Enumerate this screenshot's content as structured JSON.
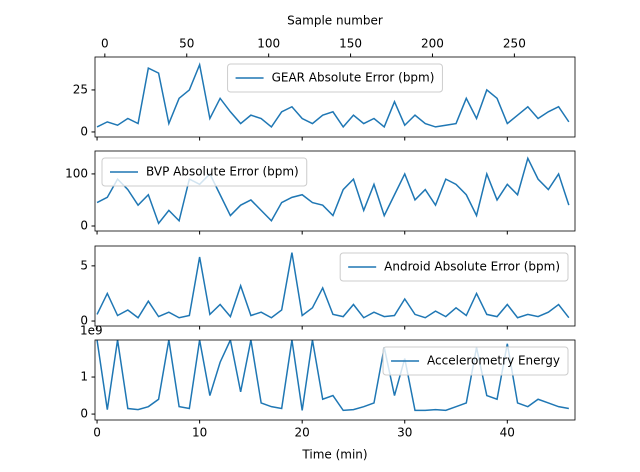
{
  "chart_data": [
    {
      "type": "line",
      "x2label": "Sample number",
      "x2lim": [
        -6,
        287
      ],
      "x2ticks": [
        0,
        50,
        100,
        150,
        200,
        250
      ],
      "xlim": [
        -0.2,
        46.6
      ],
      "ylim": [
        -3,
        44.6
      ],
      "yticks": [
        0,
        25
      ],
      "legend": "upper center",
      "x": [
        0,
        1,
        2,
        3,
        4,
        5,
        6,
        7,
        8,
        9,
        10,
        11,
        12,
        13,
        14,
        15,
        16,
        17,
        18,
        19,
        20,
        21,
        22,
        23,
        24,
        25,
        26,
        27,
        28,
        29,
        30,
        31,
        32,
        33,
        34,
        35,
        36,
        37,
        38,
        39,
        40,
        41,
        42,
        43,
        44,
        45,
        46
      ],
      "series": [
        {
          "name": "GEAR Absolute Error (bpm)",
          "color": "#1f77b4",
          "values": [
            3,
            6,
            4,
            8,
            5,
            38,
            35,
            5,
            20,
            25,
            40,
            8,
            20,
            12,
            5,
            10,
            8,
            3,
            12,
            15,
            8,
            5,
            10,
            12,
            3,
            10,
            5,
            8,
            3,
            18,
            4,
            10,
            5,
            3,
            4,
            5,
            20,
            8,
            25,
            20,
            5,
            10,
            15,
            8,
            12,
            15,
            6
          ]
        }
      ]
    },
    {
      "type": "line",
      "xlim": [
        -0.2,
        46.6
      ],
      "ylim": [
        -9.6,
        144
      ],
      "yticks": [
        0,
        100
      ],
      "legend": "upper left",
      "x": [
        0,
        1,
        2,
        3,
        4,
        5,
        6,
        7,
        8,
        9,
        10,
        11,
        12,
        13,
        14,
        15,
        16,
        17,
        18,
        19,
        20,
        21,
        22,
        23,
        24,
        25,
        26,
        27,
        28,
        29,
        30,
        31,
        32,
        33,
        34,
        35,
        36,
        37,
        38,
        39,
        40,
        41,
        42,
        43,
        44,
        45,
        46
      ],
      "series": [
        {
          "name": "BVP Absolute Error (bpm)",
          "color": "#1f77b4",
          "values": [
            45,
            55,
            90,
            70,
            40,
            60,
            5,
            30,
            10,
            90,
            80,
            100,
            60,
            20,
            40,
            50,
            30,
            10,
            45,
            55,
            60,
            45,
            40,
            20,
            70,
            90,
            30,
            80,
            20,
            60,
            100,
            50,
            70,
            40,
            90,
            80,
            60,
            20,
            100,
            50,
            80,
            60,
            130,
            90,
            70,
            100,
            40
          ]
        }
      ]
    },
    {
      "type": "line",
      "xlim": [
        -0.2,
        46.6
      ],
      "ylim": [
        -0.45,
        6.8
      ],
      "yticks": [
        0,
        5
      ],
      "legend": "upper right",
      "x": [
        0,
        1,
        2,
        3,
        4,
        5,
        6,
        7,
        8,
        9,
        10,
        11,
        12,
        13,
        14,
        15,
        16,
        17,
        18,
        19,
        20,
        21,
        22,
        23,
        24,
        25,
        26,
        27,
        28,
        29,
        30,
        31,
        32,
        33,
        34,
        35,
        36,
        37,
        38,
        39,
        40,
        41,
        42,
        43,
        44,
        45,
        46
      ],
      "series": [
        {
          "name": "Android Absolute Error (bpm)",
          "color": "#1f77b4",
          "values": [
            0.6,
            2.5,
            0.5,
            1,
            0.3,
            1.8,
            0.4,
            0.8,
            0.3,
            0.5,
            5.8,
            0.6,
            1.5,
            0.4,
            3.2,
            0.5,
            0.8,
            0.3,
            1,
            6.2,
            0.5,
            1.2,
            3,
            0.6,
            0.4,
            1.5,
            0.3,
            0.8,
            0.4,
            0.5,
            2,
            0.6,
            0.3,
            0.9,
            0.4,
            1.2,
            0.5,
            2.5,
            0.6,
            0.4,
            1.5,
            0.3,
            0.6,
            0.4,
            0.8,
            1.5,
            0.3
          ]
        }
      ]
    },
    {
      "type": "line",
      "xlabel": "Time (min)",
      "xlim": [
        -0.2,
        46.6
      ],
      "xticks": [
        0,
        10,
        20,
        30,
        40
      ],
      "ylim": [
        -160000000.0,
        2000000000.0
      ],
      "yticks": [
        0,
        {
          "value": 1000000000.0,
          "label": "1"
        }
      ],
      "offset_text": "1e9",
      "legend": "upper right",
      "x": [
        0,
        1,
        2,
        3,
        4,
        5,
        6,
        7,
        8,
        9,
        10,
        11,
        12,
        13,
        14,
        15,
        16,
        17,
        18,
        19,
        20,
        21,
        22,
        23,
        24,
        25,
        26,
        27,
        28,
        29,
        30,
        31,
        32,
        33,
        34,
        35,
        36,
        37,
        38,
        39,
        40,
        41,
        42,
        43,
        44,
        45,
        46
      ],
      "series": [
        {
          "name": "Accelerometry Energy",
          "color": "#1f77b4",
          "values": [
            2000000000.0,
            120000000.0,
            2000000000.0,
            150000000.0,
            120000000.0,
            200000000.0,
            400000000.0,
            2000000000.0,
            200000000.0,
            150000000.0,
            2000000000.0,
            500000000.0,
            1400000000.0,
            2000000000.0,
            600000000.0,
            2000000000.0,
            300000000.0,
            200000000.0,
            150000000.0,
            2000000000.0,
            100000000.0,
            2000000000.0,
            400000000.0,
            500000000.0,
            100000000.0,
            120000000.0,
            200000000.0,
            300000000.0,
            1800000000.0,
            500000000.0,
            1500000000.0,
            100000000.0,
            100000000.0,
            120000000.0,
            100000000.0,
            200000000.0,
            300000000.0,
            1800000000.0,
            500000000.0,
            400000000.0,
            1900000000.0,
            300000000.0,
            200000000.0,
            400000000.0,
            300000000.0,
            200000000.0,
            150000000.0
          ]
        }
      ]
    }
  ]
}
